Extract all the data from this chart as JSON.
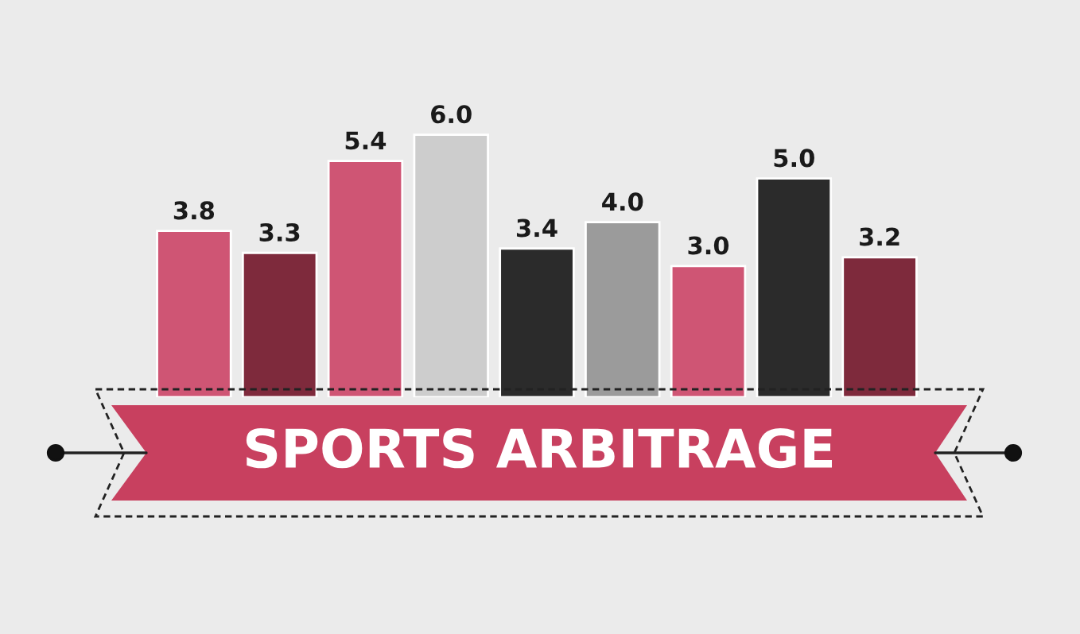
{
  "chart_data": {
    "type": "bar",
    "title": "SPORTS ARBITRAGE",
    "categories": [
      null,
      null,
      null,
      null,
      null,
      null,
      null,
      null,
      null
    ],
    "values": [
      3.8,
      3.3,
      5.4,
      6.0,
      3.4,
      4.0,
      3.0,
      5.0,
      3.2
    ],
    "colors": [
      "#cf5574",
      "#7e2a3c",
      "#cf5574",
      "#cdcdcd",
      "#2b2b2b",
      "#9b9b9b",
      "#cf5574",
      "#2b2b2b",
      "#7e2a3c"
    ],
    "value_labels": [
      "3.8",
      "3.3",
      "5.4",
      "6.0",
      "3.4",
      "4.0",
      "3.0",
      "5.0",
      "3.2"
    ]
  }
}
